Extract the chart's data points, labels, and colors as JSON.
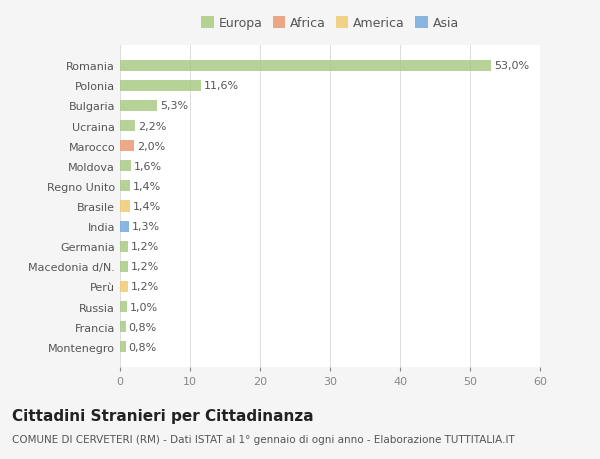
{
  "countries": [
    "Romania",
    "Polonia",
    "Bulgaria",
    "Ucraina",
    "Marocco",
    "Moldova",
    "Regno Unito",
    "Brasile",
    "India",
    "Germania",
    "Macedonia d/N.",
    "Perù",
    "Russia",
    "Francia",
    "Montenegro"
  ],
  "values": [
    53.0,
    11.6,
    5.3,
    2.2,
    2.0,
    1.6,
    1.4,
    1.4,
    1.3,
    1.2,
    1.2,
    1.2,
    1.0,
    0.8,
    0.8
  ],
  "labels": [
    "53,0%",
    "11,6%",
    "5,3%",
    "2,2%",
    "2,0%",
    "1,6%",
    "1,4%",
    "1,4%",
    "1,3%",
    "1,2%",
    "1,2%",
    "1,2%",
    "1,0%",
    "0,8%",
    "0,8%"
  ],
  "continents": [
    "Europa",
    "Europa",
    "Europa",
    "Europa",
    "Africa",
    "Europa",
    "Europa",
    "America",
    "Asia",
    "Europa",
    "Europa",
    "America",
    "Europa",
    "Europa",
    "Europa"
  ],
  "continent_colors": {
    "Europa": "#a8c97f",
    "Africa": "#e8956d",
    "America": "#f0c96d",
    "Asia": "#6fa8dc"
  },
  "legend_order": [
    "Europa",
    "Africa",
    "America",
    "Asia"
  ],
  "bg_color": "#f5f5f5",
  "plot_bg_color": "#ffffff",
  "xlim": [
    0,
    60
  ],
  "xticks": [
    0,
    10,
    20,
    30,
    40,
    50,
    60
  ],
  "title": "Cittadini Stranieri per Cittadinanza",
  "subtitle": "COMUNE DI CERVETERI (RM) - Dati ISTAT al 1° gennaio di ogni anno - Elaborazione TUTTITALIA.IT",
  "title_fontsize": 11,
  "subtitle_fontsize": 7.5,
  "bar_height": 0.55,
  "label_fontsize": 8,
  "tick_fontsize": 8,
  "legend_fontsize": 9
}
